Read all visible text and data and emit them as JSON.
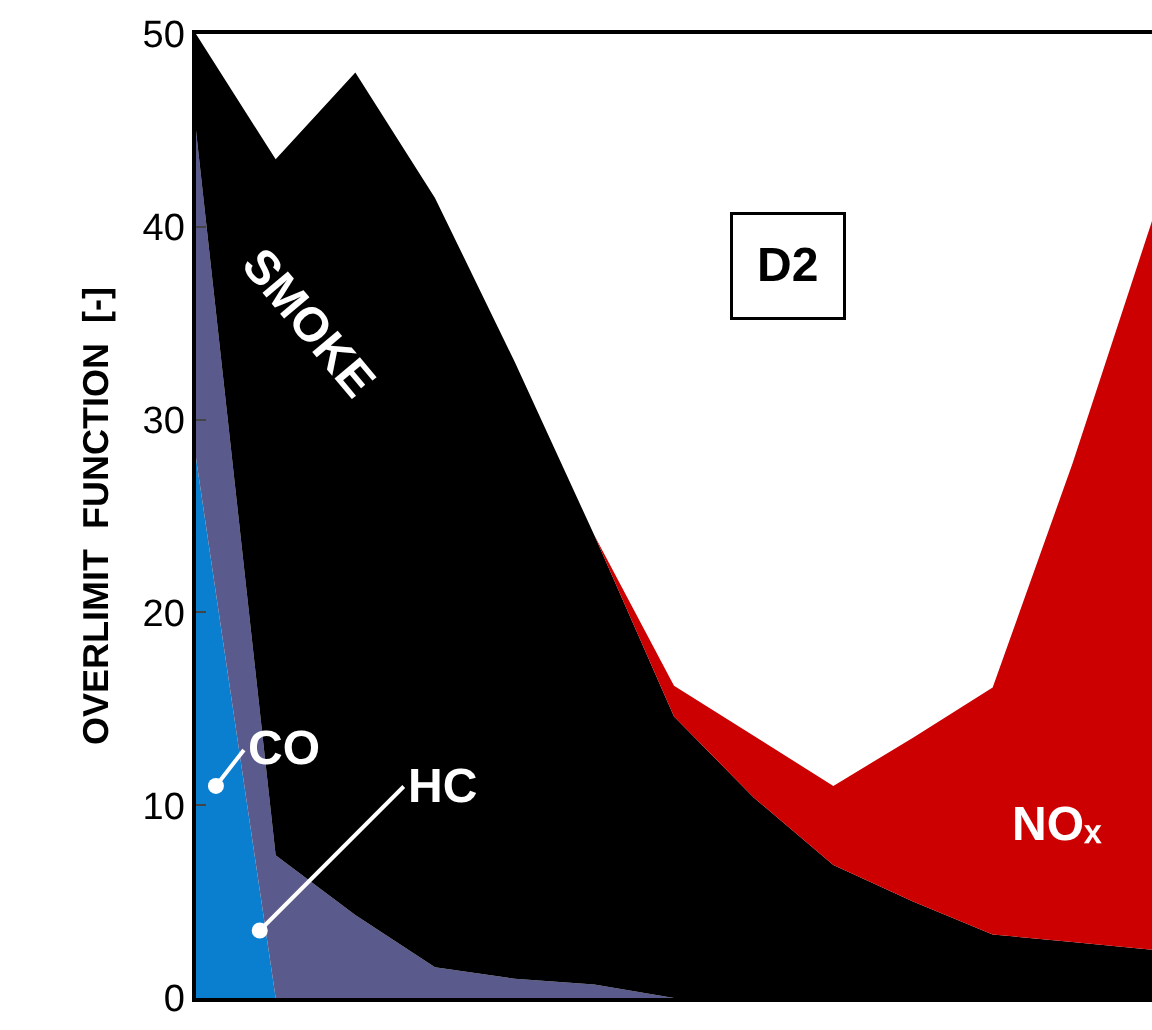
{
  "chart_data": {
    "type": "area",
    "stacked": true,
    "ylabel": "OVERLIMIT  FUNCTION  [-]",
    "ylim": [
      0,
      50
    ],
    "yticks": [
      0,
      10,
      20,
      30,
      40,
      50
    ],
    "grid": false,
    "legend": false,
    "categories": [
      null,
      null,
      null,
      null,
      null,
      null,
      null,
      null,
      null,
      null,
      null,
      null,
      null
    ],
    "series": [
      {
        "name": "CO",
        "color": "#0a7fd0",
        "values": [
          28,
          0,
          0,
          0,
          0,
          0,
          0,
          0,
          0,
          0,
          0,
          0,
          0
        ]
      },
      {
        "name": "HC",
        "color": "#5a5a8c",
        "values": [
          17,
          7.4,
          4.3,
          1.6,
          1.0,
          0.7,
          0,
          0,
          0,
          0,
          0,
          0,
          0
        ]
      },
      {
        "name": "SMOKE",
        "color": "#000000",
        "values": [
          5,
          36.1,
          43.7,
          39.9,
          32,
          23.3,
          14.6,
          10.4,
          6.9,
          5.0,
          3.3,
          2.9,
          2.5
        ]
      },
      {
        "name": "NOₓ",
        "color": "#cc0000",
        "values": [
          0,
          0,
          0,
          0,
          0,
          0,
          1.6,
          3.2,
          4.1,
          8.5,
          12.8,
          24.8,
          37.8
        ]
      }
    ],
    "annotations": [
      "D2"
    ]
  }
}
